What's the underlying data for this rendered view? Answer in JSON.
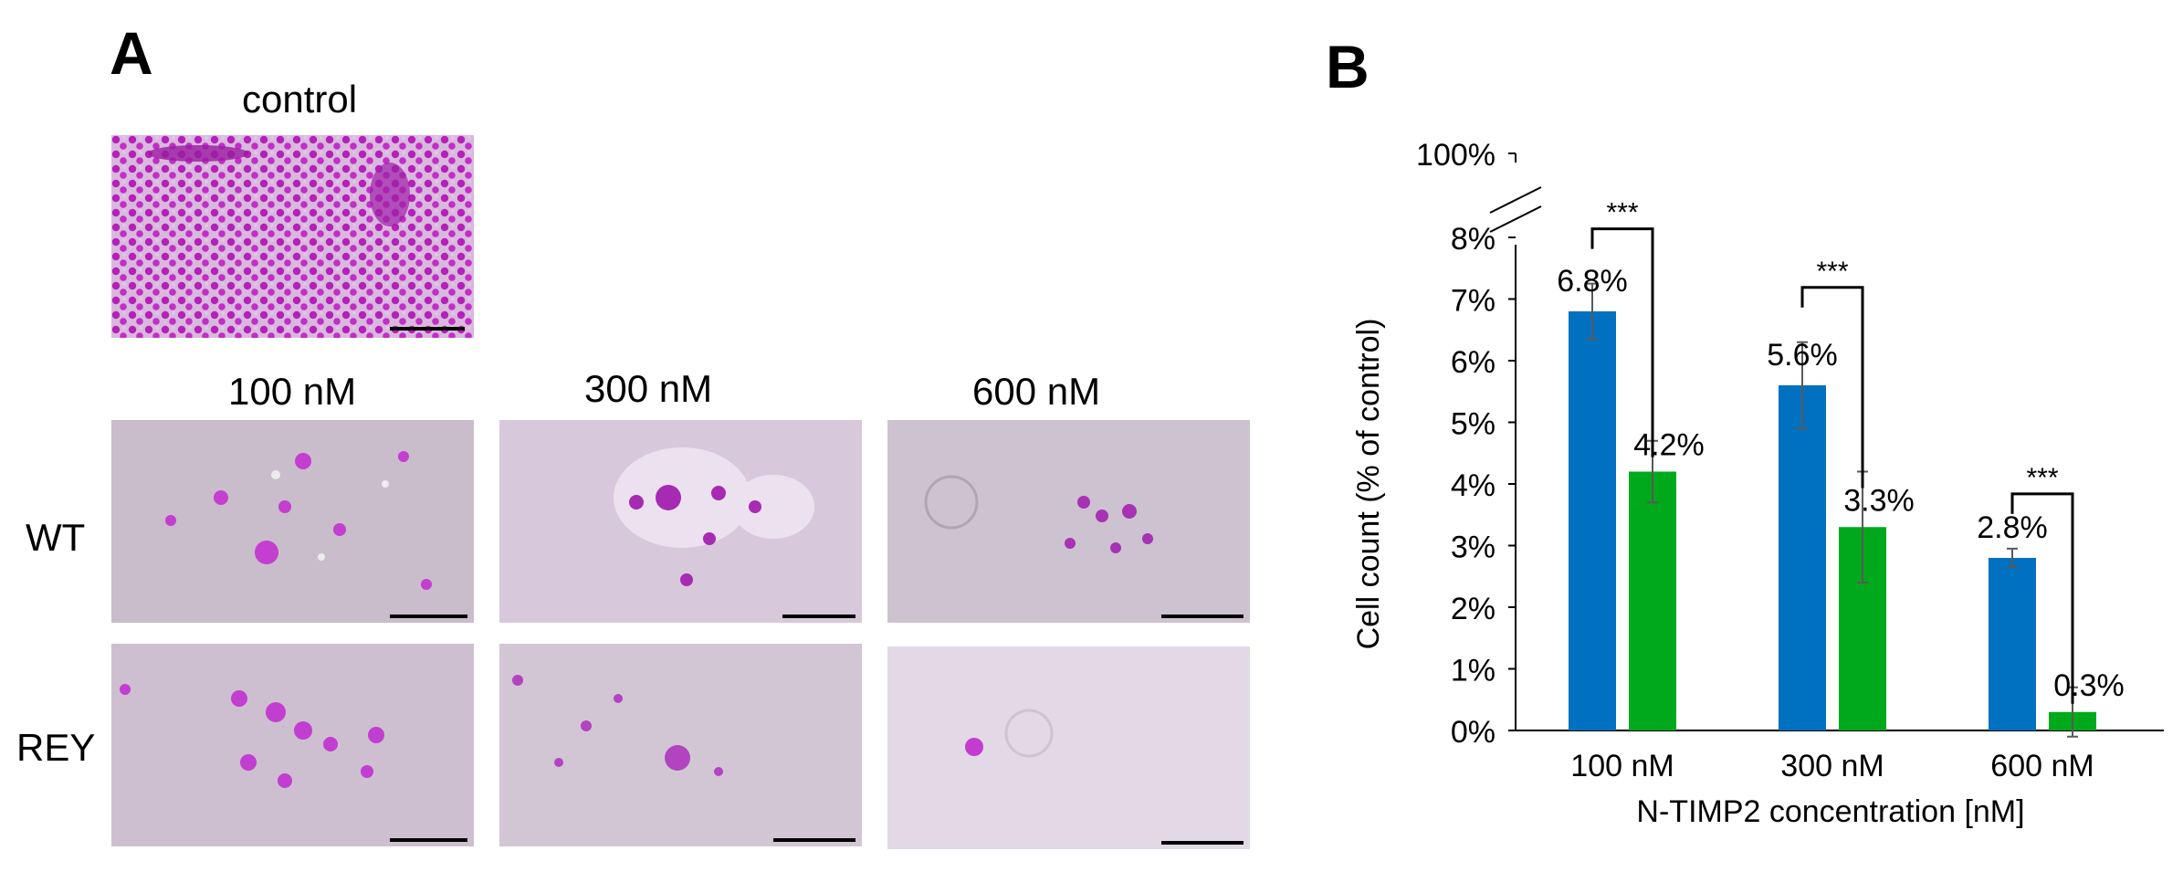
{
  "panel_a": {
    "letter": "A",
    "control_label": "control",
    "concentration_labels": [
      "100 nM",
      "300 nM",
      "600 nM"
    ],
    "row_labels": [
      "WT",
      "REY"
    ]
  },
  "panel_b": {
    "letter": "B"
  },
  "chart_data": {
    "type": "bar",
    "title": "",
    "xlabel": "N-TIMP2 concentration [nM]",
    "ylabel": "Cell count (% of control)",
    "categories": [
      "100 nM",
      "300 nM",
      "600 nM"
    ],
    "ylim": [
      0,
      8
    ],
    "y_axis_break": true,
    "y_ticks": [
      "0%",
      "1%",
      "2%",
      "3%",
      "4%",
      "5%",
      "6%",
      "7%",
      "8%"
    ],
    "y_top_tick_after_break": "100%",
    "series": [
      {
        "values": [
          6.8,
          5.6,
          2.8
        ],
        "errors": [
          0.45,
          0.7,
          0.15
        ],
        "color": "#0070c0",
        "labels": [
          "6.8%",
          "5.6%",
          "2.8%"
        ]
      },
      {
        "values": [
          4.2,
          3.3,
          0.3
        ],
        "errors": [
          0.5,
          0.9,
          0.4
        ],
        "color": "#00a91c",
        "labels": [
          "4.2%",
          "3.3%",
          "0.3%"
        ]
      }
    ],
    "significance": [
      "***",
      "***",
      "***"
    ],
    "grid": false,
    "legend": "none"
  }
}
